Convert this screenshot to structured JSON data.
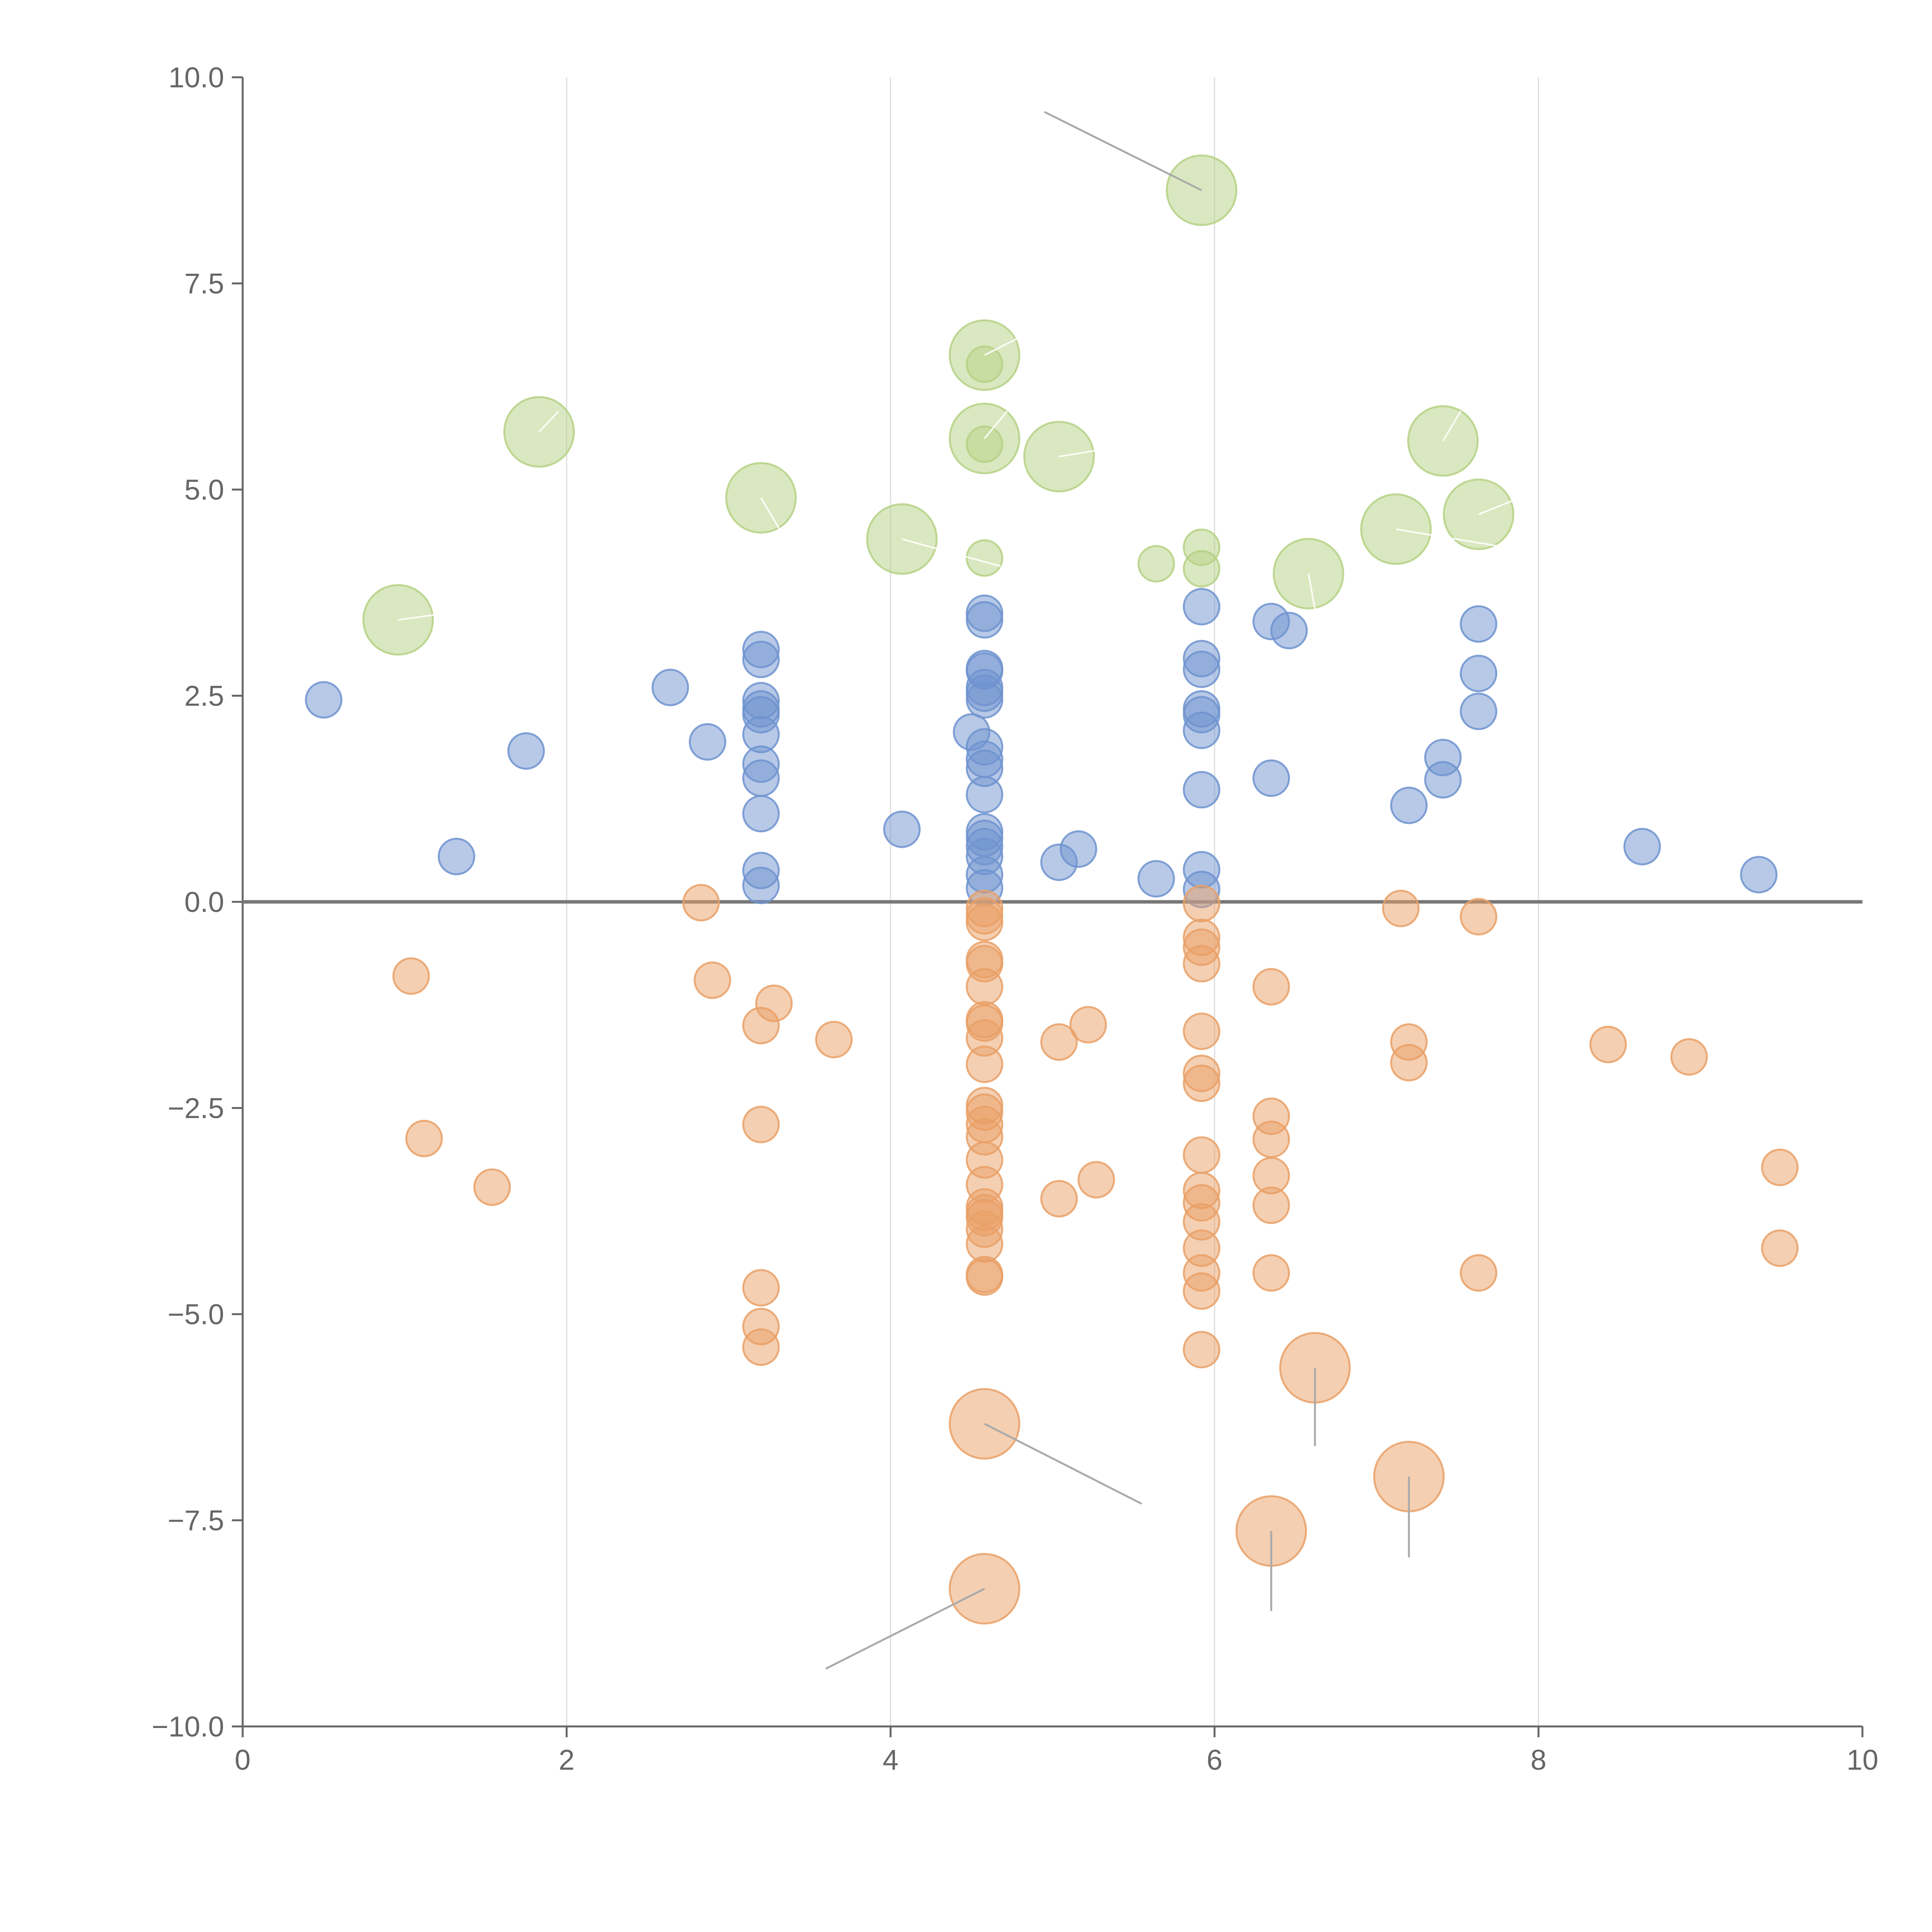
{
  "chart_data": {
    "type": "scatter",
    "title": "",
    "xlabel": "",
    "ylabel": "",
    "xlim": [
      0,
      10
    ],
    "ylim": [
      -10,
      10
    ],
    "x_ticks": [
      "0",
      "2",
      "4",
      "6",
      "8",
      "10"
    ],
    "y_ticks": [
      "10.0",
      "7.5",
      "5.0",
      "2.5",
      "0.0",
      "−2.5",
      "−5.0",
      "−7.5",
      "−10.0"
    ],
    "x_grid": [
      2,
      4,
      6,
      8
    ],
    "reference_line_y": 0,
    "colors": {
      "positive": "#6f93cf",
      "negative": "#e9a066",
      "highlight": "#b5d184",
      "leader": "#aaaaaa"
    },
    "series": [
      {
        "name": "positive",
        "color": "#6f93cf",
        "size": "small",
        "points": [
          [
            0.5,
            2.45
          ],
          [
            1.32,
            0.55
          ],
          [
            1.75,
            1.83
          ],
          [
            2.64,
            2.6
          ],
          [
            2.87,
            1.94
          ],
          [
            3.2,
            3.06
          ],
          [
            3.2,
            2.94
          ],
          [
            3.2,
            2.44
          ],
          [
            3.2,
            2.34
          ],
          [
            3.2,
            2.27
          ],
          [
            3.2,
            2.03
          ],
          [
            3.2,
            1.67
          ],
          [
            3.2,
            1.5
          ],
          [
            3.2,
            1.07
          ],
          [
            3.2,
            0.38
          ],
          [
            3.2,
            0.2
          ],
          [
            4.07,
            0.88
          ],
          [
            4.5,
            2.06
          ],
          [
            4.58,
            3.5
          ],
          [
            4.58,
            3.42
          ],
          [
            4.58,
            2.83
          ],
          [
            4.58,
            2.8
          ],
          [
            4.58,
            2.6
          ],
          [
            4.58,
            2.53
          ],
          [
            4.58,
            2.45
          ],
          [
            4.58,
            1.88
          ],
          [
            4.58,
            1.73
          ],
          [
            4.58,
            1.62
          ],
          [
            4.58,
            1.3
          ],
          [
            4.58,
            0.85
          ],
          [
            4.58,
            0.77
          ],
          [
            4.58,
            0.67
          ],
          [
            4.58,
            0.55
          ],
          [
            4.58,
            0.33
          ],
          [
            4.58,
            0.17
          ],
          [
            5.04,
            0.48
          ],
          [
            5.16,
            0.64
          ],
          [
            5.64,
            0.28
          ],
          [
            5.92,
            3.58
          ],
          [
            5.92,
            2.95
          ],
          [
            5.92,
            2.82
          ],
          [
            5.92,
            2.34
          ],
          [
            5.92,
            2.27
          ],
          [
            5.92,
            2.08
          ],
          [
            5.92,
            1.36
          ],
          [
            5.92,
            0.39
          ],
          [
            5.92,
            0.15
          ],
          [
            6.35,
            3.4
          ],
          [
            6.46,
            3.29
          ],
          [
            6.35,
            1.5
          ],
          [
            7.2,
            1.17
          ],
          [
            7.41,
            1.75
          ],
          [
            7.41,
            1.48
          ],
          [
            7.63,
            3.37
          ],
          [
            7.63,
            2.77
          ],
          [
            7.63,
            2.31
          ],
          [
            8.64,
            0.67
          ],
          [
            9.36,
            0.33
          ]
        ]
      },
      {
        "name": "negative",
        "color": "#e9a066",
        "size": "small",
        "points": [
          [
            1.04,
            -0.9
          ],
          [
            1.12,
            -2.87
          ],
          [
            1.54,
            -3.46
          ],
          [
            2.83,
            -0.01
          ],
          [
            2.9,
            -0.95
          ],
          [
            3.2,
            -1.5
          ],
          [
            3.28,
            -1.23
          ],
          [
            3.65,
            -1.67
          ],
          [
            3.2,
            -2.7
          ],
          [
            3.2,
            -4.68
          ],
          [
            3.2,
            -5.15
          ],
          [
            3.2,
            -5.4
          ],
          [
            4.58,
            -0.08
          ],
          [
            4.58,
            -0.17
          ],
          [
            4.58,
            -0.25
          ],
          [
            4.58,
            -0.7
          ],
          [
            4.58,
            -0.75
          ],
          [
            4.58,
            -1.03
          ],
          [
            4.58,
            -1.43
          ],
          [
            4.58,
            -1.47
          ],
          [
            4.58,
            -1.65
          ],
          [
            4.58,
            -1.97
          ],
          [
            4.58,
            -2.47
          ],
          [
            4.58,
            -2.55
          ],
          [
            4.58,
            -2.7
          ],
          [
            4.58,
            -2.85
          ],
          [
            4.58,
            -3.13
          ],
          [
            4.58,
            -3.43
          ],
          [
            4.58,
            -3.7
          ],
          [
            4.58,
            -3.77
          ],
          [
            4.58,
            -3.83
          ],
          [
            4.58,
            -3.97
          ],
          [
            4.58,
            -4.15
          ],
          [
            4.58,
            -4.52
          ],
          [
            4.58,
            -4.55
          ],
          [
            5.04,
            -1.7
          ],
          [
            5.22,
            -1.49
          ],
          [
            5.04,
            -3.6
          ],
          [
            5.27,
            -3.37
          ],
          [
            5.92,
            -0.02
          ],
          [
            5.92,
            -0.43
          ],
          [
            5.92,
            -0.55
          ],
          [
            5.92,
            -0.75
          ],
          [
            5.92,
            -1.57
          ],
          [
            5.92,
            -2.08
          ],
          [
            5.92,
            -2.2
          ],
          [
            5.92,
            -3.07
          ],
          [
            5.92,
            -3.5
          ],
          [
            5.92,
            -3.65
          ],
          [
            5.92,
            -3.88
          ],
          [
            5.92,
            -4.2
          ],
          [
            5.92,
            -4.5
          ],
          [
            5.92,
            -4.72
          ],
          [
            5.92,
            -5.43
          ],
          [
            6.35,
            -1.03
          ],
          [
            6.35,
            -2.6
          ],
          [
            6.35,
            -2.88
          ],
          [
            6.35,
            -3.32
          ],
          [
            6.35,
            -3.68
          ],
          [
            6.35,
            -4.5
          ],
          [
            7.15,
            -0.08
          ],
          [
            7.2,
            -1.7
          ],
          [
            7.2,
            -1.95
          ],
          [
            7.63,
            -0.18
          ],
          [
            7.63,
            -4.5
          ],
          [
            8.43,
            -1.73
          ],
          [
            8.93,
            -1.88
          ],
          [
            9.49,
            -3.22
          ],
          [
            9.49,
            -4.2
          ]
        ]
      },
      {
        "name": "highlighted",
        "color": "#b5d184",
        "size": "mixed",
        "points": [
          [
            4.58,
            6.52,
            "small"
          ],
          [
            4.58,
            5.55,
            "small"
          ],
          [
            4.58,
            4.17,
            "small"
          ],
          [
            5.64,
            4.1,
            "small"
          ],
          [
            5.92,
            4.3,
            "small"
          ],
          [
            5.92,
            4.04,
            "small"
          ]
        ]
      }
    ],
    "labeled_points": [
      {
        "x": 5.92,
        "y": 8.63,
        "color": "#b5d184",
        "leader": "gray",
        "leader_to": [
          4.95,
          9.58
        ]
      },
      {
        "x": 4.58,
        "y": 6.63,
        "color": "#b5d184",
        "leader": "white",
        "leader_to": [
          4.85,
          6.9
        ]
      },
      {
        "x": 1.83,
        "y": 5.7,
        "color": "#b5d184",
        "leader": "white",
        "leader_to": [
          1.95,
          5.95
        ]
      },
      {
        "x": 4.58,
        "y": 5.62,
        "color": "#b5d184",
        "leader": "white",
        "leader_to": [
          4.72,
          5.95
        ]
      },
      {
        "x": 5.04,
        "y": 5.4,
        "color": "#b5d184",
        "leader": "white",
        "leader_to": [
          5.35,
          5.5
        ]
      },
      {
        "x": 7.41,
        "y": 5.59,
        "color": "#b5d184",
        "leader": "white",
        "leader_to": [
          7.52,
          5.95
        ]
      },
      {
        "x": 3.2,
        "y": 4.9,
        "color": "#b5d184",
        "leader": "white",
        "leader_to": [
          3.32,
          4.5
        ]
      },
      {
        "x": 7.63,
        "y": 4.7,
        "color": "#b5d184",
        "leader": "white",
        "leader_to": [
          7.95,
          4.95
        ]
      },
      {
        "x": 4.07,
        "y": 4.4,
        "color": "#b5d184",
        "leader": "white",
        "leader_to": [
          4.68,
          4.07
        ]
      },
      {
        "x": 7.12,
        "y": 4.52,
        "color": "#b5d184",
        "leader": "white",
        "leader_to": [
          7.95,
          4.25
        ]
      },
      {
        "x": 6.58,
        "y": 3.98,
        "color": "#b5d184",
        "leader": "white",
        "leader_to": [
          6.62,
          3.55
        ]
      },
      {
        "x": 0.96,
        "y": 3.42,
        "color": "#b5d184",
        "leader": "white",
        "leader_to": [
          1.33,
          3.52
        ]
      },
      {
        "x": 6.62,
        "y": -5.65,
        "color": "#e9a066",
        "leader": "gray",
        "leader_to": [
          6.62,
          -6.6
        ]
      },
      {
        "x": 4.58,
        "y": -6.33,
        "color": "#e9a066",
        "leader": "gray",
        "leader_to": [
          5.55,
          -7.3
        ]
      },
      {
        "x": 7.2,
        "y": -6.97,
        "color": "#e9a066",
        "leader": "gray",
        "leader_to": [
          7.2,
          -7.95
        ]
      },
      {
        "x": 6.35,
        "y": -7.63,
        "color": "#e9a066",
        "leader": "gray",
        "leader_to": [
          6.35,
          -8.6
        ]
      },
      {
        "x": 4.58,
        "y": -8.33,
        "color": "#e9a066",
        "leader": "gray",
        "leader_to": [
          3.6,
          -9.3
        ]
      }
    ]
  }
}
